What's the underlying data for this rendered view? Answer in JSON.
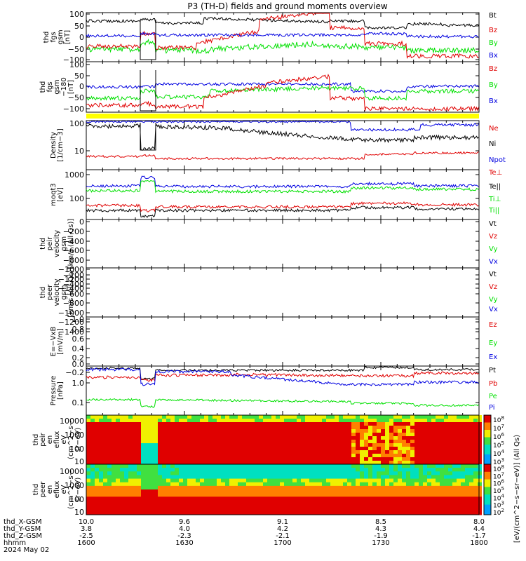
{
  "title": "P3 (TH-D) fields and ground moments overview",
  "colors": {
    "black": "#000000",
    "red": "#e00000",
    "green": "#00e000",
    "blue": "#0000e0",
    "yellow": "#ffff00"
  },
  "chart_data": {
    "type": "line",
    "title": "P3 (TH-D) fields and ground moments overview",
    "x_axis": {
      "ticks": [
        {
          "hhmm": "1600",
          "x_gsm": "10.0",
          "y_gsm": "3.8",
          "z_gsm": "-2.5"
        },
        {
          "hhmm": "1630",
          "x_gsm": "9.6",
          "y_gsm": "4.0",
          "z_gsm": "-2.3"
        },
        {
          "hhmm": "1700",
          "x_gsm": "9.1",
          "y_gsm": "4.2",
          "z_gsm": "-2.1"
        },
        {
          "hhmm": "1730",
          "x_gsm": "8.5",
          "y_gsm": "4.3",
          "z_gsm": "-1.9"
        },
        {
          "hhmm": "1800",
          "x_gsm": "8.0",
          "y_gsm": "4.4",
          "z_gsm": "-1.7"
        }
      ],
      "row_labels": [
        "thd_X-GSM",
        "thd_Y-GSM",
        "thd_Z-GSM",
        "hhmm"
      ],
      "date": "2024 May 02"
    },
    "panels": [
      {
        "id": "fgs",
        "ylabel": [
          "thd",
          "fgs",
          "gsm",
          "[nT]"
        ],
        "ylim": [
          -110,
          110
        ],
        "ticks": [
          "100",
          "50",
          "0",
          "−50",
          "−100"
        ],
        "series": [
          {
            "name": "Bt",
            "color": "black"
          },
          {
            "name": "Bz",
            "color": "red"
          },
          {
            "name": "By",
            "color": "green"
          },
          {
            "name": "Bx",
            "color": "blue"
          }
        ]
      },
      {
        "id": "fgs2",
        "ylabel": [
          "thd",
          "fgs",
          "gsm",
          "−180",
          "[nT]"
        ],
        "ylim": [
          -110,
          110
        ],
        "ticks": [
          "100",
          "50",
          "0",
          "−50",
          "−100"
        ],
        "series": [
          {
            "name": "Bz",
            "color": "red"
          },
          {
            "name": "By",
            "color": "green"
          },
          {
            "name": "Bx",
            "color": "blue"
          }
        ]
      },
      {
        "id": "density",
        "ylabel": [
          "Density",
          "[1/cm−3]"
        ],
        "log": true,
        "ticks": [
          "100",
          "10"
        ],
        "series": [
          {
            "name": "Ne",
            "color": "red"
          },
          {
            "name": "Ni",
            "color": "black"
          },
          {
            "name": "Npot",
            "color": "blue"
          }
        ]
      },
      {
        "id": "temp",
        "ylabel": [
          "moqt3",
          "[eV]"
        ],
        "log": true,
        "ticks": [
          "1000",
          "100"
        ],
        "series": [
          {
            "name": "Te⊥",
            "color": "red"
          },
          {
            "name": "Te||",
            "color": "black"
          },
          {
            "name": "Ti⊥",
            "color": "green"
          },
          {
            "name": "Ti||",
            "color": "green"
          }
        ]
      },
      {
        "id": "vi",
        "ylabel": [
          "thd",
          "peir",
          "velocity",
          "gsm",
          "[km/s (All Qs)]"
        ],
        "ylim": [
          -1400,
          0
        ],
        "ticks": [
          "0",
          "−200",
          "−400",
          "−600",
          "−800",
          "−1000",
          "−1200",
          "−1400"
        ],
        "series": [
          {
            "name": "Vt",
            "color": "black"
          },
          {
            "name": "Vz",
            "color": "red"
          },
          {
            "name": "Vy",
            "color": "green"
          },
          {
            "name": "Vx",
            "color": "blue"
          }
        ]
      },
      {
        "id": "ve",
        "ylabel": [
          "thd",
          "peer",
          "velocity",
          "gsm",
          "[km/s (All Qs)]"
        ],
        "ylim": [
          -1400,
          -200
        ],
        "ticks": [
          "−200",
          "−400",
          "−600",
          "−800",
          "−1000",
          "−1200",
          "−1400"
        ],
        "series": [
          {
            "name": "Vt",
            "color": "black"
          },
          {
            "name": "Vz",
            "color": "red"
          },
          {
            "name": "Vy",
            "color": "green"
          },
          {
            "name": "Vx",
            "color": "blue"
          }
        ]
      },
      {
        "id": "efield",
        "ylabel": [
          "E=−VxB",
          "[mV/m]"
        ],
        "ylim": [
          -0.2,
          1.0
        ],
        "ticks": [
          "1.0",
          "0.8",
          "0.6",
          "0.4",
          "0.2",
          "0.0",
          "−0.2"
        ],
        "series": [
          {
            "name": "Ez",
            "color": "red"
          },
          {
            "name": "Ey",
            "color": "green"
          },
          {
            "name": "Ex",
            "color": "blue"
          }
        ]
      },
      {
        "id": "pressure",
        "ylabel": [
          "Pressure",
          "[nPa]"
        ],
        "log": true,
        "ticks": [
          "1.0",
          "0.1"
        ],
        "series": [
          {
            "name": "Pt",
            "color": "black"
          },
          {
            "name": "Pb",
            "color": "red"
          },
          {
            "name": "Pe",
            "color": "green"
          },
          {
            "name": "Pi",
            "color": "blue"
          }
        ]
      },
      {
        "id": "peir_spec",
        "ylabel": [
          "thd",
          "peir",
          "en",
          "eflux",
          "eV",
          "(cm^2−s−",
          "sr−eV)"
        ],
        "ticks": [
          "10000",
          "1000",
          "100",
          "10"
        ]
      },
      {
        "id": "peer_spec",
        "ylabel": [
          "thd",
          "peer",
          "en",
          "eflux",
          "eV",
          "(cm^2−s−",
          "sr−eV)"
        ],
        "ticks": [
          "10000",
          "1000",
          "100",
          "10"
        ]
      }
    ],
    "colorbars": [
      {
        "ticks": [
          "10^8",
          "10^7",
          "10^6",
          "10^5",
          "10^4",
          "10^3"
        ]
      },
      {
        "ticks": [
          "10^8",
          "10^7",
          "10^6",
          "10^5",
          "10^4",
          "10^3",
          "10^2"
        ]
      }
    ],
    "colorbar_label": "[eV/(cm^2−s−sr−eV)] (All Qs)"
  }
}
